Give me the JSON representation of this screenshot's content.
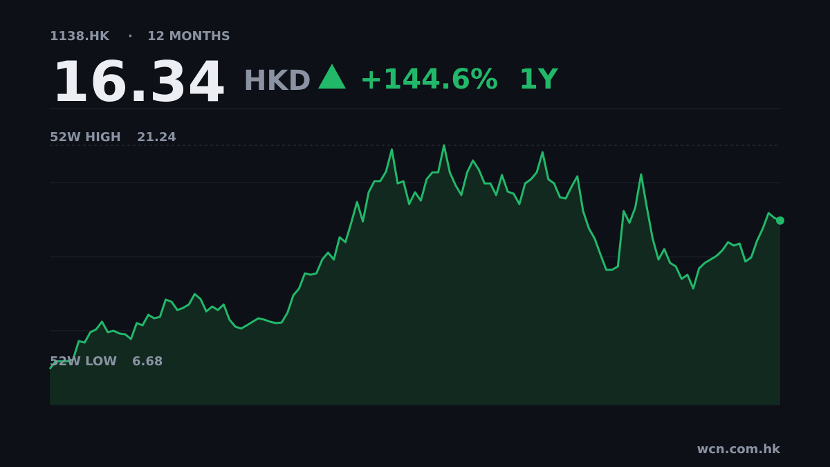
{
  "header": {
    "ticker": "1138.HK",
    "separator": "·",
    "period": "12 MONTHS",
    "price": "16.34",
    "currency": "HKD",
    "change": "+144.6%",
    "range": "1Y"
  },
  "chart_data": {
    "type": "line",
    "color": "#22b86a",
    "fill": "#11291f",
    "ylim": [
      4.34,
      23.63
    ],
    "yticks": [
      4.34,
      9.16,
      13.98,
      18.81,
      23.63
    ],
    "grid": true,
    "high": {
      "label": "52W HIGH",
      "value": 21.24
    },
    "low": {
      "label": "52W LOW",
      "value": 6.68
    },
    "values": [
      6.68,
      7.18,
      7.18,
      7.18,
      7.27,
      8.48,
      8.39,
      9.07,
      9.25,
      9.75,
      9.07,
      9.16,
      8.98,
      8.93,
      8.62,
      9.66,
      9.52,
      10.2,
      9.97,
      10.06,
      11.19,
      11.05,
      10.51,
      10.65,
      10.87,
      11.55,
      11.23,
      10.42,
      10.74,
      10.51,
      10.87,
      9.88,
      9.43,
      9.3,
      9.52,
      9.75,
      9.97,
      9.88,
      9.75,
      9.66,
      9.7,
      10.33,
      11.46,
      11.91,
      12.9,
      12.81,
      12.9,
      13.8,
      14.25,
      13.8,
      15.25,
      14.93,
      16.19,
      17.55,
      16.28,
      18.18,
      18.9,
      18.9,
      19.53,
      20.97,
      18.76,
      18.9,
      17.41,
      18.18,
      17.64,
      19.03,
      19.48,
      19.48,
      21.24,
      19.48,
      18.63,
      18.0,
      19.48,
      20.25,
      19.66,
      18.76,
      18.76,
      18.0,
      19.31,
      18.22,
      18.09,
      17.41,
      18.76,
      19.03,
      19.48,
      20.79,
      19.03,
      18.76,
      17.86,
      17.77,
      18.54,
      19.22,
      16.96,
      15.83,
      15.16,
      14.12,
      13.13,
      13.13,
      13.35,
      16.96,
      16.19,
      17.19,
      19.35,
      17.19,
      15.16,
      13.8,
      14.48,
      13.58,
      13.35,
      12.54,
      12.81,
      11.91,
      13.22,
      13.58,
      13.8,
      14.03,
      14.39,
      14.93,
      14.71,
      14.84,
      13.67,
      13.94,
      15.02,
      15.83,
      16.83,
      16.51,
      16.34
    ]
  },
  "footer": {
    "source": "wcn.com.hk"
  }
}
